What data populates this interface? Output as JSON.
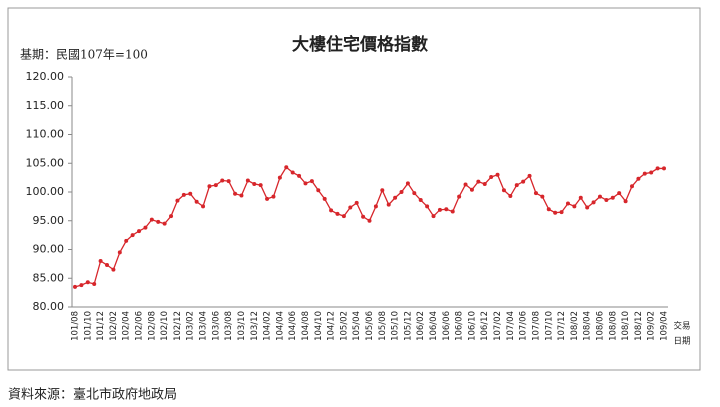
{
  "chart_data": {
    "type": "line",
    "title": "大樓住宅價格指數",
    "subtitle": "基期：民國107年=100",
    "x_label_lines": [
      "交易",
      "日期"
    ],
    "categories": [
      "101/08",
      null,
      "101/10",
      null,
      "101/12",
      null,
      "102/02",
      null,
      "102/04",
      null,
      "102/06",
      null,
      "102/08",
      null,
      "102/10",
      null,
      "102/12",
      null,
      "103/02",
      null,
      "103/04",
      null,
      "103/06",
      null,
      "103/08",
      null,
      "103/10",
      null,
      "103/12",
      null,
      "104/02",
      null,
      "104/04",
      null,
      "104/06",
      null,
      "104/08",
      null,
      "104/10",
      null,
      "104/12",
      null,
      "105/02",
      null,
      "105/04",
      null,
      "105/06",
      null,
      "105/08",
      null,
      "105/10",
      null,
      "105/12",
      null,
      "106/02",
      null,
      "106/04",
      null,
      "106/06",
      null,
      "106/08",
      null,
      "106/10",
      null,
      "106/12",
      null,
      "107/02",
      null,
      "107/04",
      null,
      "107/06",
      null,
      "107/08",
      null,
      "107/10",
      null,
      "107/12",
      null,
      "108/02",
      null,
      "108/04",
      null,
      "108/06",
      null,
      "108/08",
      null,
      "108/10",
      null,
      "108/12",
      null,
      "109/02",
      null,
      "109/04"
    ],
    "series": [
      {
        "color": "#d7262b",
        "values": [
          83.5,
          83.8,
          84.3,
          84.0,
          88.0,
          87.3,
          86.5,
          89.5,
          91.5,
          92.5,
          93.2,
          93.8,
          95.2,
          94.8,
          94.5,
          95.8,
          98.5,
          99.5,
          99.7,
          98.3,
          97.5,
          101.0,
          101.2,
          102.0,
          101.9,
          99.7,
          99.4,
          102.0,
          101.4,
          101.2,
          98.8,
          99.2,
          102.5,
          104.3,
          103.4,
          102.8,
          101.5,
          101.9,
          100.3,
          98.8,
          96.8,
          96.2,
          95.8,
          97.3,
          98.1,
          95.7,
          95.0,
          97.5,
          100.3,
          97.8,
          99.0,
          100.0,
          101.5,
          99.8,
          98.6,
          97.5,
          95.8,
          96.9,
          97.0,
          96.6,
          99.2,
          101.3,
          100.4,
          101.8,
          101.4,
          102.6,
          103.0,
          100.3,
          99.3,
          101.2,
          101.8,
          102.8,
          99.8,
          99.2,
          97.0,
          96.4,
          96.5,
          98.0,
          97.5,
          99.0,
          97.3,
          98.2,
          99.2,
          98.6,
          99.0,
          99.8,
          98.4,
          101.0,
          102.3,
          103.2,
          103.4,
          104.1,
          104.1
        ]
      }
    ],
    "ylim": [
      80,
      120
    ],
    "yticks": [
      {
        "value": 80,
        "label": "80.00"
      },
      {
        "value": 85,
        "label": "85.00"
      },
      {
        "value": 90,
        "label": "90.00"
      },
      {
        "value": 95,
        "label": "95.00"
      },
      {
        "value": 100,
        "label": "100.00"
      },
      {
        "value": 105,
        "label": "105.00"
      },
      {
        "value": 110,
        "label": "110.00"
      },
      {
        "value": 115,
        "label": "115.00"
      },
      {
        "value": 120,
        "label": "120.00"
      }
    ],
    "grid": false
  },
  "source": "資料來源：臺北市政府地政局"
}
